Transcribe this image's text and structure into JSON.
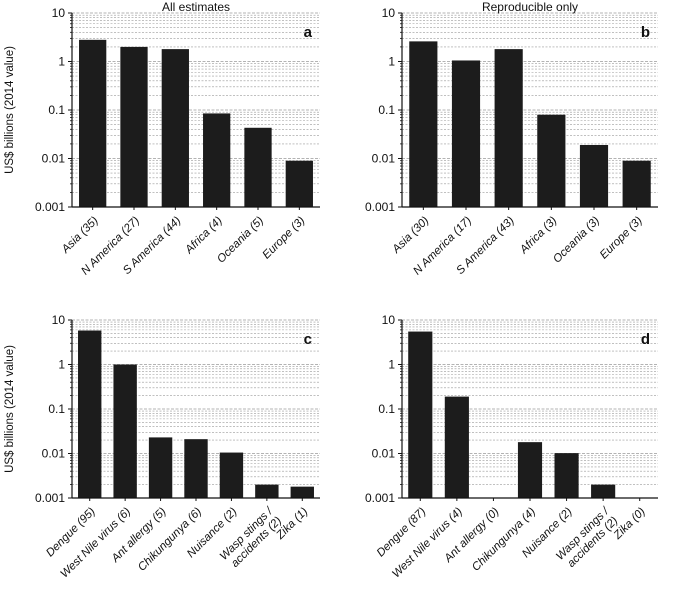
{
  "chart_data": [
    {
      "id": "a",
      "type": "bar",
      "title": "All estimates",
      "panel_label": "a",
      "ylabel": "US$ billions (2014 value)",
      "yscale": "log",
      "ylim": [
        0.001,
        10
      ],
      "yticks": [
        "0.001",
        "0.01",
        "0.1",
        "1",
        "10"
      ],
      "grid": "minor-horizontal",
      "categories": [
        "Asia (35)",
        "N America (27)",
        "S America (44)",
        "Africa (4)",
        "Oceania (5)",
        "Europe (3)"
      ],
      "values": [
        2.8,
        2.0,
        1.8,
        0.085,
        0.043,
        0.009
      ]
    },
    {
      "id": "b",
      "type": "bar",
      "title": "Reproducible only",
      "panel_label": "b",
      "ylabel": "",
      "yscale": "log",
      "ylim": [
        0.001,
        10
      ],
      "yticks": [
        "0.001",
        "0.01",
        "0.1",
        "1",
        "10"
      ],
      "grid": "minor-horizontal",
      "categories": [
        "Asia (30)",
        "N America (17)",
        "S America (43)",
        "Africa (3)",
        "Oceania (3)",
        "Europe (3)"
      ],
      "values": [
        2.6,
        1.05,
        1.8,
        0.08,
        0.019,
        0.009
      ]
    },
    {
      "id": "c",
      "type": "bar",
      "title": "",
      "panel_label": "c",
      "ylabel": "US$ billions (2014 value)",
      "yscale": "log",
      "ylim": [
        0.001,
        10
      ],
      "yticks": [
        "0.001",
        "0.01",
        "0.1",
        "1",
        "10"
      ],
      "grid": "minor-horizontal",
      "categories": [
        "Dengue (95)",
        "West Nile virus (6)",
        "Ant allergy (5)",
        "Chikungunya (6)",
        "Nuisance (2)",
        "Wasp stings / accidents (2)",
        "Zika (1)"
      ],
      "values": [
        5.8,
        1.0,
        0.023,
        0.021,
        0.0105,
        0.002,
        0.0018
      ]
    },
    {
      "id": "d",
      "type": "bar",
      "title": "",
      "panel_label": "d",
      "ylabel": "",
      "yscale": "log",
      "ylim": [
        0.001,
        10
      ],
      "yticks": [
        "0.001",
        "0.01",
        "0.1",
        "1",
        "10"
      ],
      "grid": "minor-horizontal",
      "categories": [
        "Dengue (87)",
        "West Nile virus (4)",
        "Ant allergy (0)",
        "Chikungunya (4)",
        "Nuisance (2)",
        "Wasp stings / accidents (2)",
        "Zika (0)"
      ],
      "values": [
        5.5,
        0.19,
        null,
        0.018,
        0.0102,
        0.002,
        null
      ]
    }
  ],
  "colors": {
    "bar": "#1c1c1c",
    "axis": "#111111",
    "grid": "#9a9a9a"
  }
}
